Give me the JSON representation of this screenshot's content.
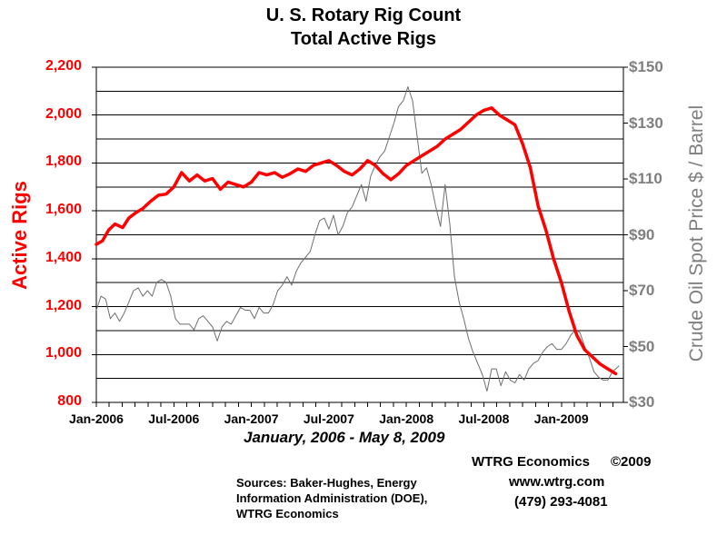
{
  "chart_data": {
    "type": "line",
    "title": [
      "U. S. Rotary Rig Count",
      "Total Active Rigs"
    ],
    "subtitle": "January, 2006 - May 8, 2009",
    "xlabel": "",
    "ylabel": "Active Rigs",
    "y2label": "Crude Oil Spot Price $ / Barrel",
    "ylim": [
      800,
      2200
    ],
    "y2lim": [
      30,
      150
    ],
    "xlim": [
      2006.0,
      2009.4
    ],
    "x_tick_labels": [
      "Jan-2006",
      "Jul-2006",
      "Jan-2007",
      "Jul-2007",
      "Jan-2008",
      "Jul-2008",
      "Jan-2009"
    ],
    "x_tick_values": [
      2006.0,
      2006.5,
      2007.0,
      2007.5,
      2008.0,
      2008.5,
      2009.0
    ],
    "y_tick_labels": [
      "800",
      "1,000",
      "1,200",
      "1,400",
      "1,600",
      "1,800",
      "2,000",
      "2,200"
    ],
    "y_tick_values": [
      800,
      1000,
      1200,
      1400,
      1600,
      1800,
      2000,
      2200
    ],
    "y2_tick_labels": [
      "$30",
      "$50",
      "$70",
      "$90",
      "$110",
      "$130",
      "$150"
    ],
    "y2_tick_values": [
      30,
      50,
      70,
      90,
      110,
      130,
      150
    ],
    "series": [
      {
        "name": "Active Rigs",
        "axis": "left",
        "color": "#ff0000",
        "x": [
          2006.0,
          2006.04,
          2006.08,
          2006.12,
          2006.17,
          2006.21,
          2006.25,
          2006.3,
          2006.35,
          2006.4,
          2006.45,
          2006.5,
          2006.55,
          2006.6,
          2006.65,
          2006.7,
          2006.75,
          2006.8,
          2006.85,
          2006.9,
          2006.95,
          2007.0,
          2007.05,
          2007.1,
          2007.15,
          2007.2,
          2007.25,
          2007.3,
          2007.35,
          2007.4,
          2007.45,
          2007.5,
          2007.55,
          2007.6,
          2007.65,
          2007.7,
          2007.75,
          2007.8,
          2007.85,
          2007.9,
          2007.95,
          2008.0,
          2008.05,
          2008.1,
          2008.15,
          2008.2,
          2008.25,
          2008.3,
          2008.35,
          2008.4,
          2008.45,
          2008.5,
          2008.55,
          2008.6,
          2008.65,
          2008.7,
          2008.75,
          2008.8,
          2008.85,
          2008.9,
          2008.95,
          2009.0,
          2009.05,
          2009.1,
          2009.15,
          2009.2,
          2009.25,
          2009.3,
          2009.35
        ],
        "values": [
          1460,
          1475,
          1520,
          1545,
          1530,
          1570,
          1590,
          1610,
          1640,
          1665,
          1670,
          1700,
          1760,
          1725,
          1750,
          1725,
          1735,
          1690,
          1720,
          1710,
          1700,
          1720,
          1760,
          1750,
          1760,
          1740,
          1755,
          1775,
          1765,
          1790,
          1800,
          1810,
          1790,
          1765,
          1750,
          1775,
          1810,
          1790,
          1755,
          1730,
          1755,
          1790,
          1810,
          1830,
          1850,
          1870,
          1900,
          1920,
          1940,
          1970,
          2000,
          2020,
          2030,
          2000,
          1980,
          1960,
          1880,
          1780,
          1620,
          1520,
          1400,
          1300,
          1180,
          1080,
          1020,
          990,
          960,
          940,
          920
        ]
      },
      {
        "name": "Crude Oil Spot Price",
        "axis": "right",
        "color": "#6e6e6e",
        "x": [
          2006.0,
          2006.03,
          2006.06,
          2006.09,
          2006.12,
          2006.15,
          2006.18,
          2006.21,
          2006.24,
          2006.27,
          2006.3,
          2006.33,
          2006.36,
          2006.39,
          2006.42,
          2006.45,
          2006.48,
          2006.51,
          2006.54,
          2006.57,
          2006.6,
          2006.63,
          2006.66,
          2006.69,
          2006.72,
          2006.75,
          2006.78,
          2006.81,
          2006.84,
          2006.87,
          2006.9,
          2006.93,
          2006.96,
          2006.99,
          2007.02,
          2007.05,
          2007.08,
          2007.11,
          2007.14,
          2007.17,
          2007.2,
          2007.23,
          2007.26,
          2007.29,
          2007.32,
          2007.35,
          2007.38,
          2007.41,
          2007.44,
          2007.47,
          2007.5,
          2007.53,
          2007.56,
          2007.59,
          2007.62,
          2007.65,
          2007.68,
          2007.71,
          2007.74,
          2007.77,
          2007.8,
          2007.83,
          2007.86,
          2007.89,
          2007.92,
          2007.95,
          2007.98,
          2008.01,
          2008.04,
          2008.07,
          2008.1,
          2008.13,
          2008.16,
          2008.19,
          2008.22,
          2008.25,
          2008.28,
          2008.31,
          2008.34,
          2008.37,
          2008.4,
          2008.43,
          2008.46,
          2008.49,
          2008.52,
          2008.55,
          2008.58,
          2008.61,
          2008.64,
          2008.67,
          2008.7,
          2008.73,
          2008.76,
          2008.79,
          2008.82,
          2008.85,
          2008.88,
          2008.91,
          2008.94,
          2008.97,
          2009.0,
          2009.03,
          2009.06,
          2009.09,
          2009.12,
          2009.15,
          2009.18,
          2009.21,
          2009.24,
          2009.27,
          2009.3,
          2009.33,
          2009.37
        ],
        "values": [
          63,
          68,
          67,
          60,
          62,
          59,
          62,
          66,
          70,
          71,
          68,
          70,
          68,
          73,
          74,
          73,
          68,
          60,
          58,
          58,
          58,
          56,
          60,
          61,
          59,
          57,
          52,
          57,
          59,
          58,
          61,
          64,
          63,
          63,
          60,
          64,
          62,
          62,
          65,
          70,
          72,
          75,
          72,
          77,
          80,
          82,
          84,
          90,
          95,
          96,
          92,
          97,
          90,
          93,
          98,
          100,
          104,
          108,
          102,
          111,
          115,
          118,
          120,
          125,
          130,
          136,
          138,
          143,
          138,
          125,
          112,
          114,
          108,
          100,
          93,
          108,
          94,
          75,
          66,
          60,
          53,
          48,
          44,
          40,
          34,
          42,
          42,
          36,
          41,
          38,
          37,
          40,
          38,
          42,
          44,
          45,
          48,
          50,
          51,
          49,
          49,
          51,
          54,
          56,
          55,
          50,
          46,
          41,
          39,
          38,
          38,
          41,
          43
        ]
      }
    ],
    "grid": true
  },
  "credits": {
    "company": "WTRG Economics",
    "copyright": "©2009",
    "website": "www.wtrg.com",
    "phone": "(479) 293-4081"
  },
  "sources": {
    "line1": "Sources: Baker-Hughes, Energy",
    "line2": "Information Administration (DOE),",
    "line3": "WTRG Economics"
  },
  "colors": {
    "rigs": "#ff0000",
    "oil": "#6e6e6e",
    "grid": "#000000"
  }
}
